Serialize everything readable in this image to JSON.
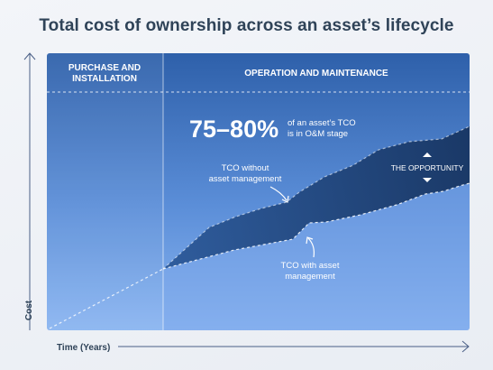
{
  "title": "Total cost of ownership across an asset’s lifecycle",
  "phases": {
    "purchase_line1": "PURCHASE AND",
    "purchase_line2": "INSTALLATION",
    "operation": "OPERATION AND MAINTENANCE"
  },
  "stat": {
    "value": "75–80%",
    "desc_line1": "of an asset’s TCO",
    "desc_line2": "is in O&M stage"
  },
  "annotations": {
    "without_line1": "TCO without",
    "without_line2": "asset management",
    "with_line1": "TCO with asset",
    "with_line2": "management",
    "opportunity": "THE OPPORTUNITY"
  },
  "axes": {
    "y_label": "Cost",
    "x_label": "Time (Years)"
  },
  "colors": {
    "panel_top": "#2d5fa8",
    "panel_bottom": "#86b2f0",
    "opportunity_band": "#1c3f73",
    "text_dark": "#2f4358",
    "axis": "#4a5f86"
  }
}
